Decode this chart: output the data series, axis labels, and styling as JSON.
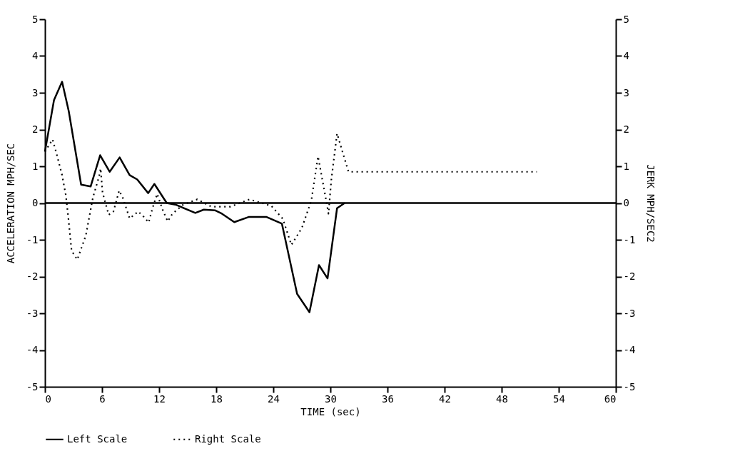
{
  "chart_data": {
    "type": "line",
    "xlabel": "TIME (sec)",
    "ylabel": "ACCELERATION  MPH/SEC",
    "y2label": "JERK  MPH/SEC2",
    "xlim": [
      0,
      60
    ],
    "xticks": [
      0,
      6,
      12,
      18,
      24,
      30,
      36,
      42,
      48,
      54,
      60
    ],
    "ylim": [
      -5,
      5
    ],
    "yticks": [
      -5,
      -4,
      -3,
      -2,
      -1,
      0,
      1,
      2,
      3,
      4,
      5
    ],
    "y2lim": [
      -5,
      5
    ],
    "y2ticks": [
      -5,
      -4,
      -3,
      -2,
      -1,
      0,
      1,
      2,
      3,
      4,
      5
    ],
    "grid": false,
    "legend": "bottom",
    "ref_lines": [
      {
        "axis": "y",
        "value": 0,
        "color": "#000000"
      }
    ],
    "series": [
      {
        "name": "Left Scale",
        "color": "#000000",
        "line_style": "solid",
        "x": [
          0,
          0.95,
          1.8,
          2.5,
          3.8,
          4.8,
          5.8,
          6.8,
          7.85,
          8.9,
          9.7,
          10.85,
          11.5,
          12.8,
          13.8,
          15.8,
          16.7,
          17.9,
          18.6,
          19.9,
          21.4,
          23.3,
          24.9,
          26.5,
          27.8,
          28.8,
          29.7,
          30.7,
          31.5
        ],
        "values": [
          1.4,
          2.8,
          3.3,
          2.5,
          0.5,
          0.45,
          1.3,
          0.85,
          1.24,
          0.76,
          0.64,
          0.27,
          0.52,
          0,
          -0.05,
          -0.27,
          -0.18,
          -0.2,
          -0.29,
          -0.52,
          -0.38,
          -0.38,
          -0.56,
          -2.47,
          -2.97,
          -1.69,
          -2.05,
          -0.14,
          0
        ]
      },
      {
        "name": "Right Scale",
        "color": "#000000",
        "line_style": "dotted",
        "axis": "y2",
        "x": [
          0,
          0.8,
          1.2,
          1.8,
          2.2,
          2.45,
          2.8,
          3.4,
          4.3,
          4.7,
          5.05,
          5.7,
          5.85,
          6.05,
          6.7,
          7.2,
          7.8,
          8.2,
          8.9,
          9.8,
          10.4,
          10.9,
          11.3,
          11.8,
          12.3,
          12.9,
          13.4,
          14.5,
          16,
          17.5,
          19.5,
          21.5,
          23.8,
          25,
          25.9,
          27,
          28,
          28.7,
          29.4,
          29.8,
          30.1,
          30.7,
          31.9,
          51.7
        ],
        "values": [
          1.4,
          1.73,
          1.36,
          0.76,
          0.2,
          -0.38,
          -1.3,
          -1.54,
          -0.88,
          -0.32,
          0.16,
          0.73,
          0.94,
          0.29,
          -0.32,
          -0.23,
          0.34,
          0.13,
          -0.42,
          -0.23,
          -0.38,
          -0.53,
          -0.14,
          0.25,
          -0.14,
          -0.5,
          -0.29,
          -0.05,
          0.1,
          -0.1,
          -0.1,
          0.1,
          -0.08,
          -0.43,
          -1.14,
          -0.68,
          0.07,
          1.27,
          0.29,
          -0.29,
          0.64,
          1.89,
          0.85,
          0.85
        ]
      }
    ]
  }
}
